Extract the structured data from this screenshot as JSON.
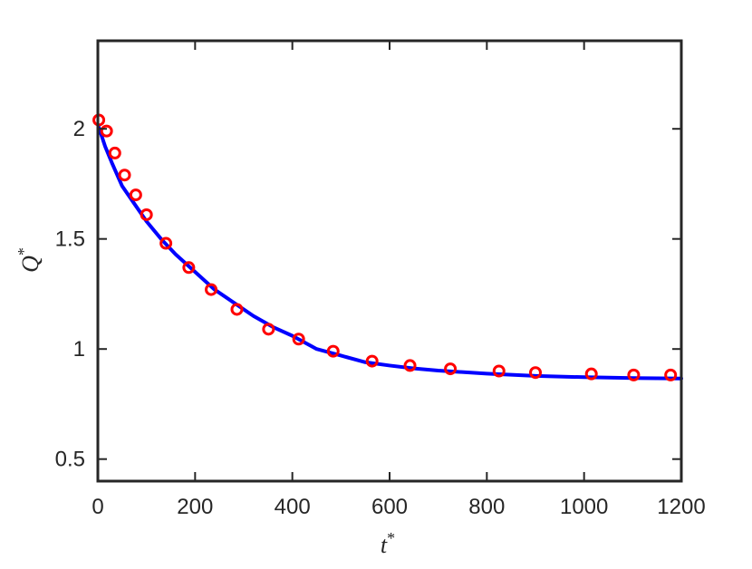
{
  "chart_data": {
    "type": "line",
    "title": "",
    "xlabel": {
      "base": "t",
      "sup": "*"
    },
    "ylabel": {
      "base": "Q",
      "sup": "*"
    },
    "xlim": [
      0,
      1200
    ],
    "ylim": [
      0.4,
      2.4
    ],
    "xticks": [
      0,
      200,
      400,
      600,
      800,
      1000,
      1200
    ],
    "xtick_labels": [
      "0",
      "200",
      "400",
      "600",
      "800",
      "1000",
      "1200"
    ],
    "yticks": [
      0.5,
      1,
      1.5,
      2
    ],
    "ytick_labels": [
      "0.5",
      "1",
      "1.5",
      "2"
    ],
    "grid": false,
    "legend": "none",
    "series": [
      {
        "style": "line",
        "color": "#0000ff",
        "x": [
          0,
          15,
          30,
          50,
          75,
          100,
          130,
          160,
          200,
          240,
          280,
          320,
          360,
          400,
          450,
          500,
          550,
          600,
          650,
          700,
          800,
          900,
          1000,
          1100,
          1200
        ],
        "y": [
          2.02,
          1.92,
          1.84,
          1.74,
          1.66,
          1.58,
          1.5,
          1.43,
          1.35,
          1.27,
          1.21,
          1.15,
          1.1,
          1.06,
          1.0,
          0.97,
          0.94,
          0.925,
          0.912,
          0.902,
          0.888,
          0.878,
          0.872,
          0.868,
          0.866
        ]
      },
      {
        "style": "scatter",
        "marker": "open-circle",
        "color": "#ff0000",
        "x": [
          2,
          18,
          35,
          55,
          78,
          100,
          140,
          187,
          233,
          286,
          351,
          413,
          484,
          564,
          642,
          725,
          825,
          900,
          1015,
          1102,
          1178
        ],
        "y": [
          2.04,
          1.99,
          1.89,
          1.79,
          1.7,
          1.61,
          1.48,
          1.37,
          1.27,
          1.18,
          1.09,
          1.045,
          0.99,
          0.945,
          0.925,
          0.91,
          0.9,
          0.893,
          0.887,
          0.882,
          0.882
        ]
      }
    ]
  }
}
